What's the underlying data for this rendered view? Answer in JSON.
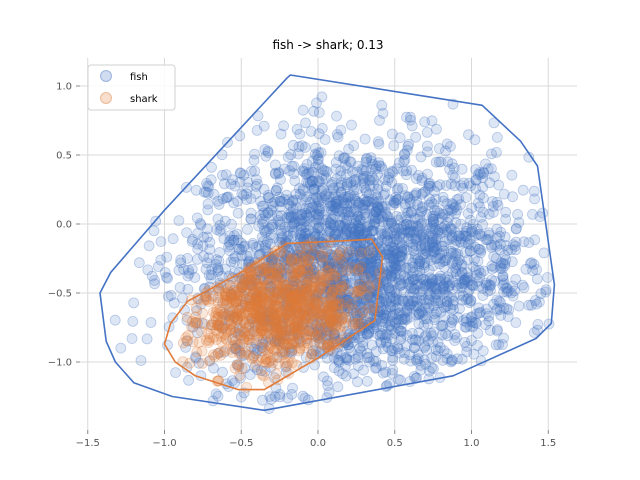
{
  "chart_data": {
    "type": "scatter",
    "title": "fish -> shark; 0.13",
    "xlabel": "",
    "ylabel": "",
    "xlim": [
      -1.5,
      1.7
    ],
    "ylim": [
      -1.5,
      1.2
    ],
    "xticks": [
      -1.5,
      -1.0,
      -0.5,
      0.0,
      0.5,
      1.0,
      1.5
    ],
    "xtick_labels": [
      "−1.5",
      "−1.0",
      "−0.5",
      "0.0",
      "0.5",
      "1.0",
      "1.5"
    ],
    "yticks": [
      -1.0,
      -0.5,
      0.0,
      0.5,
      1.0
    ],
    "ytick_labels": [
      "−1.0",
      "−0.5",
      "0.0",
      "0.5",
      "1.0"
    ],
    "grid": true,
    "legend_position": "top-left",
    "series": [
      {
        "name": "fish",
        "color": "#4472c4",
        "points_n": 2600,
        "center": [
          0.25,
          -0.3
        ],
        "spread": [
          0.55,
          0.45
        ],
        "hull": [
          [
            -0.18,
            1.08
          ],
          [
            1.07,
            0.86
          ],
          [
            1.32,
            0.6
          ],
          [
            1.43,
            0.42
          ],
          [
            1.54,
            -0.44
          ],
          [
            1.52,
            -0.72
          ],
          [
            1.42,
            -0.83
          ],
          [
            0.88,
            -1.1
          ],
          [
            -0.35,
            -1.35
          ],
          [
            -0.95,
            -1.25
          ],
          [
            -1.2,
            -1.15
          ],
          [
            -1.32,
            -1.0
          ],
          [
            -1.38,
            -0.85
          ],
          [
            -1.42,
            -0.5
          ],
          [
            -1.35,
            -0.35
          ],
          [
            -1.0,
            0.1
          ],
          [
            -0.2,
            1.06
          ]
        ]
      },
      {
        "name": "shark",
        "color": "#e07b39",
        "points_n": 900,
        "center": [
          -0.25,
          -0.62
        ],
        "spread": [
          0.3,
          0.22
        ],
        "hull": [
          [
            -0.18,
            -0.14
          ],
          [
            0.2,
            -0.12
          ],
          [
            0.35,
            -0.11
          ],
          [
            0.42,
            -0.24
          ],
          [
            0.37,
            -0.7
          ],
          [
            0.0,
            -0.97
          ],
          [
            -0.35,
            -1.2
          ],
          [
            -0.52,
            -1.2
          ],
          [
            -0.8,
            -1.1
          ],
          [
            -0.93,
            -1.0
          ],
          [
            -1.0,
            -0.87
          ],
          [
            -0.96,
            -0.72
          ],
          [
            -0.85,
            -0.56
          ],
          [
            -0.5,
            -0.35
          ],
          [
            -0.2,
            -0.14
          ]
        ]
      }
    ]
  }
}
